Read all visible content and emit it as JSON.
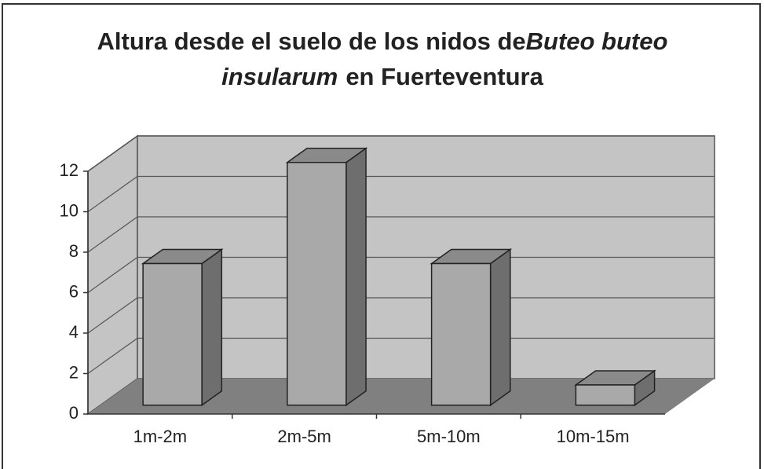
{
  "chart_data": {
    "type": "bar3d",
    "title_lines": [
      [
        {
          "text": "Altura desde el suelo de los nidos de",
          "italic": false
        },
        {
          "text": "Buteo buteo",
          "italic": true
        }
      ],
      [
        {
          "text": "insularum",
          "italic": true
        },
        {
          "text": "en Fuerteventura",
          "italic": false
        }
      ]
    ],
    "categories": [
      "1m-2m",
      "2m-5m",
      "5m-10m",
      "10m-15m"
    ],
    "values": [
      7,
      12,
      7,
      1
    ],
    "color": "#a9a9a9",
    "ylim": [
      0,
      12
    ],
    "yticks": [
      0,
      2,
      4,
      6,
      8,
      10,
      12
    ],
    "grid": true
  }
}
